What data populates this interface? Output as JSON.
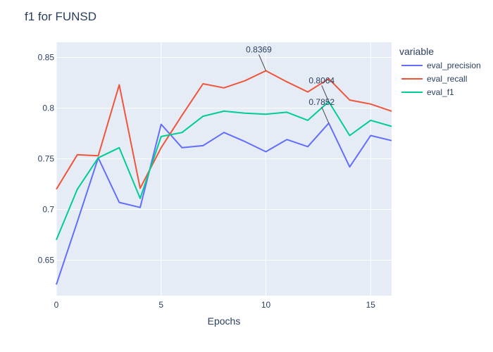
{
  "chart_data": {
    "type": "line",
    "title": "f1 for FUNSD",
    "xlabel": "Epochs",
    "ylabel": "",
    "xlim": [
      0,
      16
    ],
    "ylim": [
      0.615,
      0.865
    ],
    "x_ticks": [
      0,
      5,
      10,
      15
    ],
    "y_ticks": [
      0.65,
      0.7,
      0.75,
      0.8,
      0.85
    ],
    "y_tick_labels": [
      "0.65",
      "0.7",
      "0.75",
      "0.8",
      "0.85"
    ],
    "x": [
      0,
      1,
      2,
      3,
      4,
      5,
      6,
      7,
      8,
      9,
      10,
      11,
      12,
      13,
      14,
      15,
      16
    ],
    "legend_title": "variable",
    "legend_position": "right",
    "grid": true,
    "series": [
      {
        "name": "eval_precision",
        "color": "#636efa",
        "values": [
          0.626,
          0.688,
          0.751,
          0.707,
          0.702,
          0.784,
          0.761,
          0.763,
          0.776,
          0.767,
          0.757,
          0.769,
          0.762,
          0.7852,
          0.742,
          0.773,
          0.768
        ]
      },
      {
        "name": "eval_recall",
        "color": "#ef553b",
        "values": [
          0.72,
          0.754,
          0.753,
          0.823,
          0.721,
          0.761,
          0.793,
          0.824,
          0.82,
          0.827,
          0.8369,
          0.826,
          0.816,
          0.829,
          0.808,
          0.804,
          0.797
        ]
      },
      {
        "name": "eval_f1",
        "color": "#00cc96",
        "values": [
          0.67,
          0.72,
          0.751,
          0.761,
          0.711,
          0.772,
          0.776,
          0.792,
          0.797,
          0.795,
          0.794,
          0.796,
          0.788,
          0.8064,
          0.773,
          0.788,
          0.782
        ]
      }
    ],
    "annotations": [
      {
        "text": "0.8369",
        "x": 10,
        "y": 0.8369
      },
      {
        "text": "0.8064",
        "x": 13,
        "y": 0.8064
      },
      {
        "text": "0.7852",
        "x": 13,
        "y": 0.7852
      }
    ]
  }
}
